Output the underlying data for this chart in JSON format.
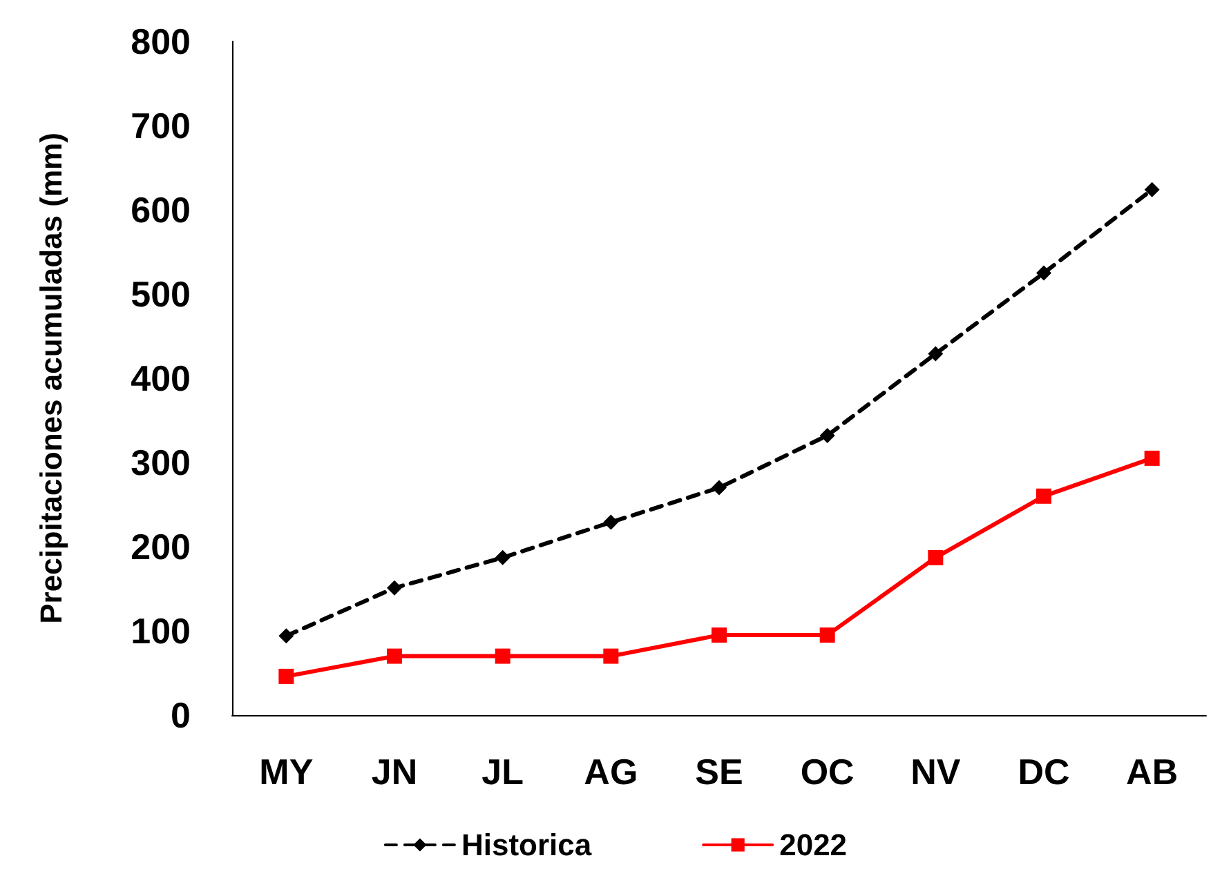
{
  "chart_data": {
    "type": "line",
    "ylabel": "Precipitaciones acumuladas (mm)",
    "categories": [
      "MY",
      "JN",
      "JL",
      "AG",
      "SE",
      "OC",
      "NV",
      "DC",
      "AB"
    ],
    "series": [
      {
        "name": "Historica",
        "color": "#000000",
        "marker": "diamond",
        "line_style": "dashed",
        "values": [
          94,
          151,
          187,
          229,
          270,
          332,
          429,
          525,
          624
        ]
      },
      {
        "name": "2022",
        "color": "#ff0000",
        "marker": "square",
        "line_style": "solid",
        "values": [
          46,
          70,
          70,
          70,
          95,
          95,
          187,
          260,
          305
        ]
      }
    ],
    "ylim": [
      0,
      800
    ],
    "yticks": [
      0,
      100,
      200,
      300,
      400,
      500,
      600,
      700,
      800
    ],
    "grid": false,
    "legend": "bottom"
  }
}
